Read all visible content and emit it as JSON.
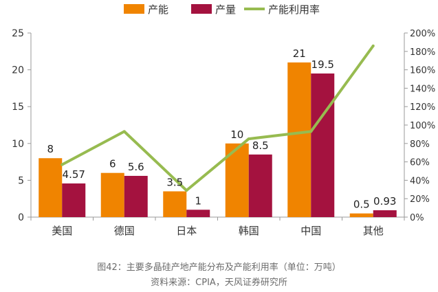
{
  "chart_data": {
    "type": "bar",
    "categories": [
      "美国",
      "德国",
      "日本",
      "韩国",
      "中国",
      "其他"
    ],
    "series": [
      {
        "name": "产能",
        "type": "bar",
        "axis": "left",
        "values": [
          8,
          6,
          3.5,
          10,
          21,
          0.5
        ],
        "labels": [
          "8",
          "6",
          "3.5",
          "10",
          "21",
          "0.5"
        ],
        "color": "#F08400"
      },
      {
        "name": "产量",
        "type": "bar",
        "axis": "left",
        "values": [
          4.57,
          5.6,
          1,
          8.5,
          19.5,
          0.93
        ],
        "labels": [
          "4.57",
          "5.6",
          "1",
          "8.5",
          "19.5",
          "0.93"
        ],
        "color": "#A4123F"
      },
      {
        "name": "产能利用率",
        "type": "line",
        "axis": "right",
        "values": [
          57,
          93,
          29,
          85,
          93,
          186
        ],
        "color": "#97BB50"
      }
    ],
    "ylim_left": [
      0,
      25
    ],
    "yticks_left": [
      "0",
      "5",
      "10",
      "15",
      "20",
      "25"
    ],
    "ylim_right": [
      0,
      200
    ],
    "yticks_right": [
      "0%",
      "20%",
      "40%",
      "60%",
      "80%",
      "100%",
      "120%",
      "140%",
      "160%",
      "180%",
      "200%"
    ],
    "grid": false,
    "legend_position": "top-center"
  },
  "caption": {
    "title": "图42：主要多晶硅产地产能分布及产能利用率（单位：万吨）",
    "source": "资料来源：CPIA，天风证券研究所"
  }
}
